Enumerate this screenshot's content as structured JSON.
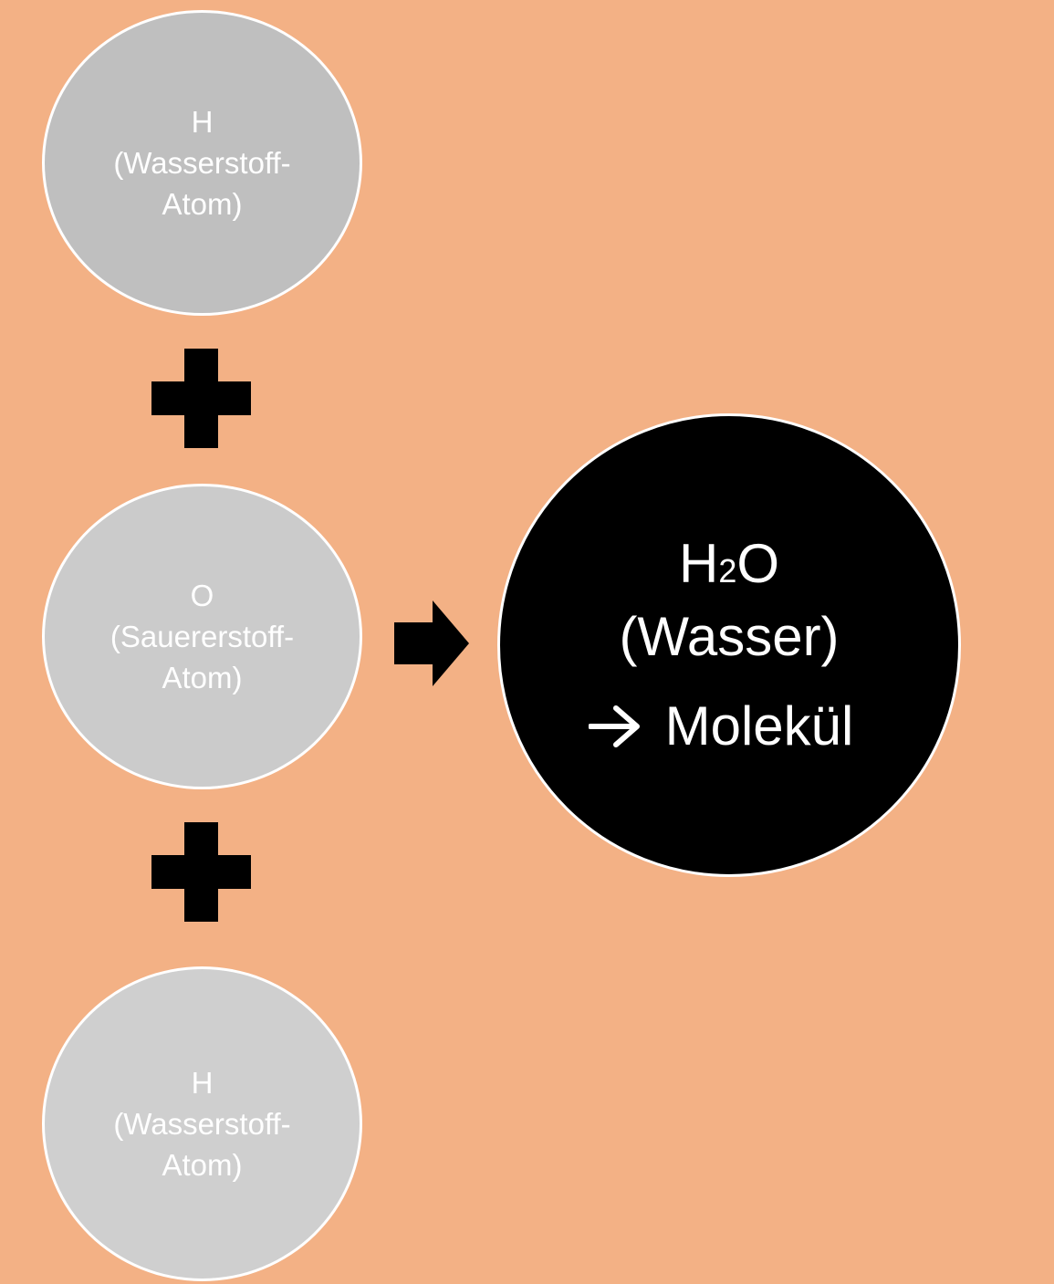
{
  "atoms": {
    "top": {
      "symbol": "H",
      "name": "(Wasserstoff-",
      "suffix": "Atom)",
      "color": "#bfbfbf"
    },
    "middle": {
      "symbol": "O",
      "name": "(Sauererstoff-",
      "suffix": "Atom)",
      "color": "#cbcbcb"
    },
    "bottom": {
      "symbol": "H",
      "name": "(Wasserstoff-",
      "suffix": "Atom)",
      "color": "#cfcfcf"
    }
  },
  "operators": {
    "plus_icon": "plus-icon",
    "arrow_icon": "arrow-right-icon"
  },
  "molecule": {
    "formula_main": "H",
    "formula_subscript": "2",
    "formula_end": "O",
    "name": "(Wasser)",
    "type_label": "Molekül",
    "color": "#000000"
  },
  "colors": {
    "background": "#f3b185",
    "circle_border": "#ffffff",
    "text": "#ffffff"
  }
}
